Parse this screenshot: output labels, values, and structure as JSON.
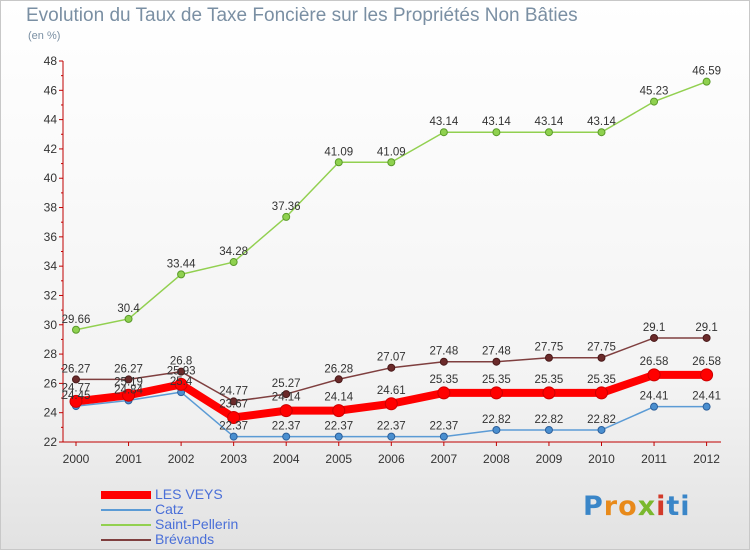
{
  "chart_data": {
    "type": "line",
    "title": "Evolution du Taux de Taxe Foncière sur les Propriétés Non Bâties",
    "subtitle": "(en %)",
    "x": [
      "2000",
      "2001",
      "2002",
      "2003",
      "2004",
      "2005",
      "2006",
      "2007",
      "2008",
      "2009",
      "2010",
      "2011",
      "2012"
    ],
    "ylim": [
      22,
      48
    ],
    "yticks": [
      22,
      24,
      26,
      28,
      30,
      32,
      34,
      36,
      38,
      40,
      42,
      44,
      46,
      48
    ],
    "grid": false,
    "legend_position": "bottom-left",
    "series": [
      {
        "name": "LES VEYS",
        "color": "#ff0000",
        "values": [
          24.77,
          25.19,
          25.93,
          23.67,
          24.14,
          24.14,
          24.61,
          25.35,
          25.35,
          25.35,
          25.35,
          26.58,
          26.58
        ],
        "labels": [
          "24.77",
          "25.19",
          "25.93",
          "23.67",
          "24.14",
          "24.14",
          "24.61",
          "25.35",
          "25.35",
          "25.35",
          "25.35",
          "26.58",
          "26.58"
        ]
      },
      {
        "name": "Catz",
        "color": "#5b9bd5",
        "values": [
          24.45,
          24.84,
          25.4,
          22.37,
          22.37,
          22.37,
          22.37,
          22.37,
          22.82,
          22.82,
          22.82,
          24.41,
          24.41
        ],
        "labels": [
          "24.45",
          "24.84",
          "25.4",
          "22.37",
          "22.37",
          "22.37",
          "22.37",
          "22.37",
          "22.82",
          "22.82",
          "22.82",
          "24.41",
          "24.41"
        ]
      },
      {
        "name": "Saint-Pellerin",
        "color": "#92d050",
        "values": [
          29.66,
          30.4,
          33.44,
          34.28,
          37.36,
          41.09,
          41.09,
          43.14,
          43.14,
          43.14,
          43.14,
          45.23,
          46.59
        ],
        "labels": [
          "29.66",
          "30.4",
          "33.44",
          "34.28",
          "37.36",
          "41.09",
          "41.09",
          "43.14",
          "43.14",
          "43.14",
          "43.14",
          "45.23",
          "46.59"
        ]
      },
      {
        "name": "Brévands",
        "color": "#7f3f3f",
        "values": [
          26.27,
          26.27,
          26.8,
          24.77,
          25.27,
          26.28,
          27.07,
          27.48,
          27.48,
          27.75,
          27.75,
          29.1,
          29.1
        ],
        "labels": [
          "26.27",
          "26.27",
          "26.8",
          "24.77",
          "25.27",
          "26.28",
          "27.07",
          "27.48",
          "27.48",
          "27.75",
          "27.75",
          "29.1",
          "29.1"
        ]
      }
    ]
  },
  "legend": {
    "items": [
      "LES VEYS",
      "Catz",
      "Saint-Pellerin",
      "Brévands"
    ]
  },
  "logo": {
    "letters": [
      "P",
      "r",
      "o",
      "x",
      "i",
      "ti"
    ]
  }
}
